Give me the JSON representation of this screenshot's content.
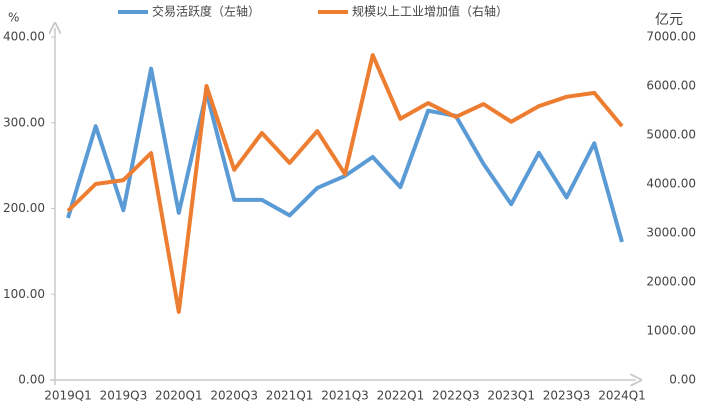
{
  "chart_data": {
    "type": "line",
    "y_label": "%",
    "y2_label": "亿元",
    "categories": [
      "2019Q1",
      null,
      "2019Q3",
      null,
      "2020Q1",
      null,
      "2020Q3",
      null,
      "2021Q1",
      null,
      "2021Q3",
      null,
      "2022Q1",
      null,
      "2022Q3",
      null,
      "2023Q1",
      null,
      "2023Q3",
      null,
      "2024Q1"
    ],
    "series": [
      {
        "name": "交易活跃度（左轴）",
        "color": "#5b9bd5",
        "axis": "y",
        "values": [
          189,
          296,
          198,
          363,
          195,
          335,
          210,
          210,
          192,
          224,
          238,
          260,
          225,
          314,
          308,
          252,
          205,
          265,
          213,
          276,
          161
        ]
      },
      {
        "name": "规模以上工业增加值（右轴）",
        "color": "#ed7d31",
        "axis": "y2",
        "values": [
          3450,
          4000,
          4080,
          4630,
          1390,
          6000,
          4290,
          5040,
          4430,
          5080,
          4200,
          6630,
          5330,
          5650,
          5370,
          5630,
          5270,
          5590,
          5780,
          5860,
          5180
        ]
      }
    ],
    "ylim": [
      0,
      400
    ],
    "yticks": [
      {
        "value": 0,
        "label": "0.00"
      },
      {
        "value": 100,
        "label": "100.00"
      },
      {
        "value": 200,
        "label": "200.00"
      },
      {
        "value": 300,
        "label": "300.00"
      },
      {
        "value": 400,
        "label": "400.00"
      }
    ],
    "y2lim": [
      0,
      7000
    ],
    "y2ticks": [
      {
        "value": 0,
        "label": "0.00"
      },
      {
        "value": 1000,
        "label": "1000.00"
      },
      {
        "value": 2000,
        "label": "2000.00"
      },
      {
        "value": 3000,
        "label": "3000.00"
      },
      {
        "value": 4000,
        "label": "4000.00"
      },
      {
        "value": 5000,
        "label": "5000.00"
      },
      {
        "value": 6000,
        "label": "6000.00"
      },
      {
        "value": 7000,
        "label": "7000.00"
      }
    ],
    "grid": false
  }
}
